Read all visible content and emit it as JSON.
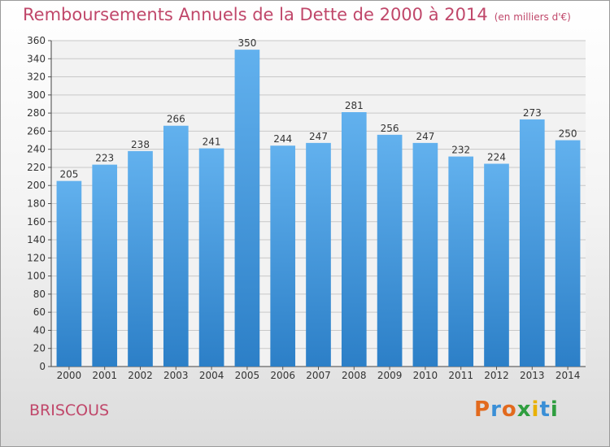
{
  "header": {
    "title": "Remboursements Annuels de la Dette de 2000 à 2014",
    "unit": "(en milliers d'€)"
  },
  "footer": {
    "commune": "BRISCOUS",
    "logo": "Proxiti"
  },
  "colors": {
    "title": "#c0476a",
    "bar_light": "#62b1ee",
    "bar_dark": "#2c7fc7",
    "grid": "#c8c8c8",
    "logo_letters": [
      "#e26a1e",
      "#3a8fd6",
      "#e26a1e",
      "#2f9e3f",
      "#e9b100",
      "#3a8fd6",
      "#2f9e3f"
    ]
  },
  "chart_data": {
    "type": "bar",
    "title": "Remboursements Annuels de la Dette de 2000 à 2014",
    "subtitle": "(en milliers d'€)",
    "categories": [
      "2000",
      "2001",
      "2002",
      "2003",
      "2004",
      "2005",
      "2006",
      "2007",
      "2008",
      "2009",
      "2010",
      "2011",
      "2012",
      "2013",
      "2014"
    ],
    "values": [
      205,
      223,
      238,
      266,
      241,
      350,
      244,
      247,
      281,
      256,
      247,
      232,
      224,
      273,
      250
    ],
    "ylim": [
      0,
      360
    ],
    "ytick_step": 20,
    "grid": true,
    "xlabel": "",
    "ylabel": ""
  }
}
